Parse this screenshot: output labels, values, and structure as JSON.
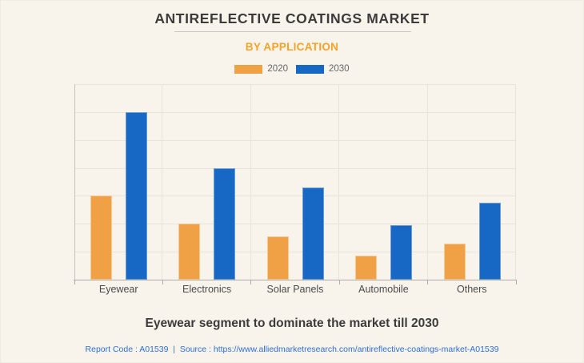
{
  "header": {
    "title": "ANTIREFLECTIVE COATINGS MARKET",
    "subtitle": "BY APPLICATION"
  },
  "chart_data": {
    "type": "bar",
    "title": "ANTIREFLECTIVE COATINGS MARKET",
    "subtitle": "BY APPLICATION",
    "categories": [
      "Eyewear",
      "Electronics",
      "Solar Panels",
      "Automobile",
      "Others"
    ],
    "series": [
      {
        "name": "2020",
        "color": "#F0A145",
        "border_color": "#F6CA92",
        "values": [
          3.0,
          2.0,
          1.55,
          0.85,
          1.3
        ]
      },
      {
        "name": "2030",
        "color": "#1767C4",
        "border_color": "#6B9AD8",
        "values": [
          6.0,
          4.0,
          3.3,
          1.95,
          2.75
        ]
      }
    ],
    "ylim": [
      0,
      7
    ],
    "grid": true,
    "legend_position": "top",
    "xlabel": "",
    "ylabel": ""
  },
  "footer": {
    "caption": "Eyewear segment to dominate the market till 2030",
    "report_prefix": "Report Code : A01539  |  Source : ",
    "source_url": "https://www.alliedmarketresearch.com/antireflective-coatings-market-A01539"
  },
  "colors": {
    "background": "#F8F4EC",
    "accent_orange": "#F5A326",
    "series_2020": "#F0A145",
    "series_2030": "#1767C4",
    "gridline": "#E7E3DA",
    "axis": "#AEACA7",
    "text_dark": "#3B3B3B",
    "footer_link": "#2D6FD1"
  }
}
